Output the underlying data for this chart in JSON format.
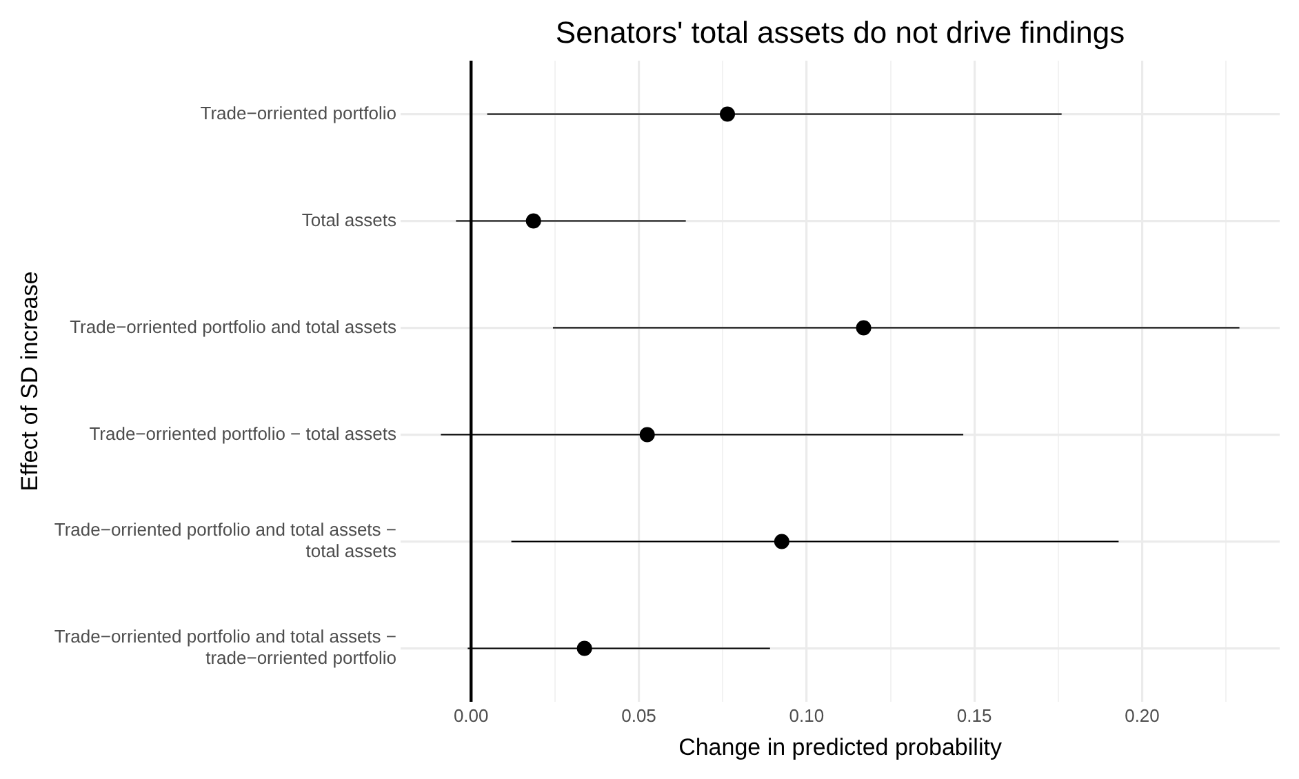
{
  "chart_data": {
    "type": "scatter",
    "title": "Senators' total assets do not drive findings",
    "xlabel": "Change in predicted probability",
    "ylabel": "Effect of SD increase",
    "categories": [
      "Trade−orriented portfolio",
      "Total assets",
      "Trade−orriented portfolio and total assets",
      "Trade−orriented portfolio − total assets",
      "Trade−orriented portfolio and total assets −\ntotal assets",
      "Trade−orriented portfolio and total assets −\ntrade−orriented portfolio"
    ],
    "values": [
      0.0764,
      0.0186,
      0.117,
      0.0525,
      0.0926,
      0.0338
    ],
    "errors": [
      [
        0.0048,
        0.176
      ],
      [
        -0.0045,
        0.064
      ],
      [
        0.0244,
        0.229
      ],
      [
        -0.009,
        0.1467
      ],
      [
        0.012,
        0.193
      ],
      [
        -0.001,
        0.0891
      ]
    ],
    "color": "#000000",
    "marker": "circle",
    "orientation": "horizontal",
    "xlim": [
      -0.021,
      0.241
    ],
    "xticks": [
      {
        "value": 0,
        "label": "0.00"
      },
      {
        "value": 0.025,
        "label": null
      },
      {
        "value": 0.05,
        "label": "0.05"
      },
      {
        "value": 0.075,
        "label": null
      },
      {
        "value": 0.1,
        "label": "0.10"
      },
      {
        "value": 0.125,
        "label": null
      },
      {
        "value": 0.15,
        "label": "0.15"
      },
      {
        "value": 0.175,
        "label": null
      },
      {
        "value": 0.2,
        "label": "0.20"
      },
      {
        "value": 0.225,
        "label": null
      }
    ],
    "ref_lines": [
      {
        "axis": "x",
        "value": 0,
        "color": "#000000"
      }
    ],
    "grid": true,
    "legend": false
  }
}
